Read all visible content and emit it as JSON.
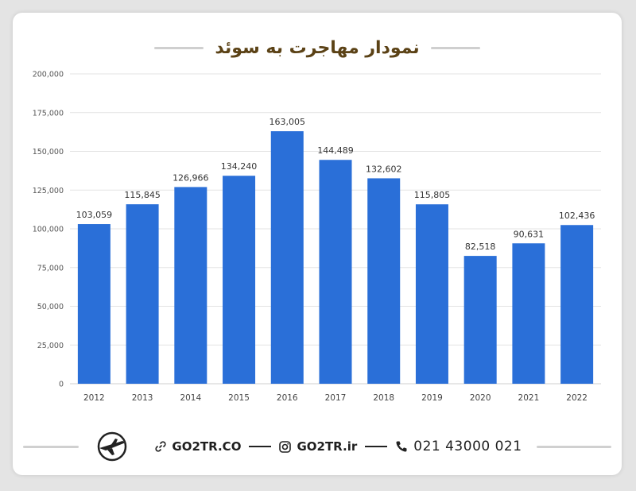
{
  "title": "نمودار مهاجرت به سوئد",
  "footer": {
    "website": "GO2TR.CO",
    "instagram": "GO2TR.ir",
    "phone": "021 43000 021",
    "website_icon": "link-icon",
    "instagram_icon": "instagram-icon",
    "phone_icon": "phone-icon",
    "logo_icon": "airplane-logo-icon"
  },
  "colors": {
    "bar": "#2a6fd8",
    "title": "#5b4216",
    "grid": "#e3e3e3"
  },
  "chart_data": {
    "type": "bar",
    "categories": [
      "2012",
      "2013",
      "2014",
      "2015",
      "2016",
      "2017",
      "2018",
      "2019",
      "2020",
      "2021",
      "2022"
    ],
    "values": [
      103059,
      115845,
      126966,
      134240,
      163005,
      144489,
      132602,
      115805,
      82518,
      90631,
      102436
    ],
    "value_labels": [
      "103,059",
      "115,845",
      "126,966",
      "134,240",
      "163,005",
      "144,489",
      "132,602",
      "115,805",
      "82,518",
      "90,631",
      "102,436"
    ],
    "y_ticks": [
      0,
      25000,
      50000,
      75000,
      100000,
      125000,
      150000,
      175000,
      200000
    ],
    "y_tick_labels": [
      "0",
      "25,000",
      "50,000",
      "75,000",
      "100,000",
      "125,000",
      "150,000",
      "175,000",
      "200,000"
    ],
    "ylim": [
      0,
      200000
    ],
    "grid": true,
    "xlabel": "",
    "ylabel": ""
  }
}
